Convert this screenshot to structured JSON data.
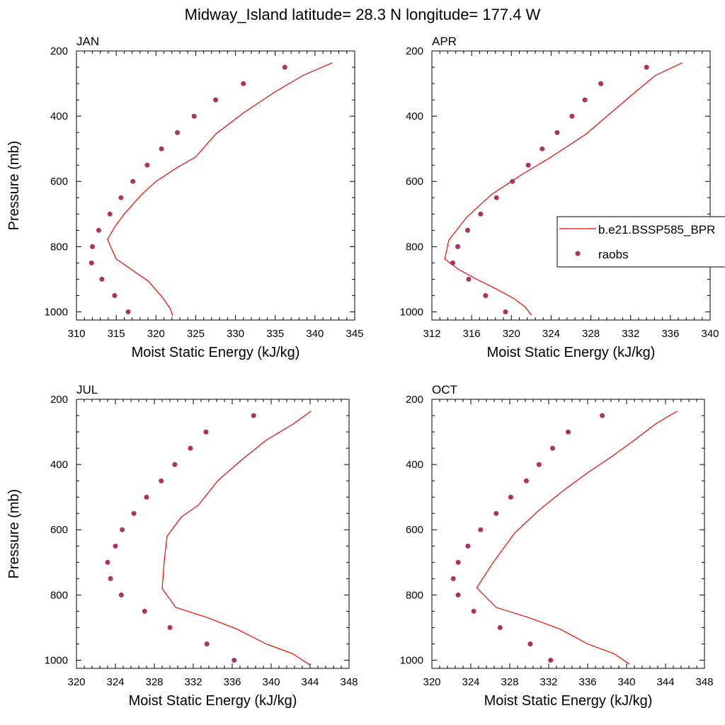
{
  "figure": {
    "title": "Midway_Island  latitude= 28.3 N longitude= 177.4 W"
  },
  "legend": {
    "placement": "right of APR panel (clipped at right edge)",
    "model_label": "b.e21.BSSP585_BPR",
    "obs_label": "raobs"
  },
  "colors": {
    "model_line": "#ff0000",
    "obs_marker": "#b03060",
    "axis": "#000000"
  },
  "chart_data": [
    {
      "type": "line",
      "panel": "JAN",
      "title": "JAN",
      "xlabel": "Moist Static Energy (kJ/kg)",
      "ylabel": "Pressure (mb)",
      "xlim": [
        310,
        345
      ],
      "ylim": [
        1025,
        200
      ],
      "y_inverted": true,
      "xticks": [
        310,
        315,
        320,
        325,
        330,
        335,
        340,
        345
      ],
      "yticks": [
        200,
        400,
        600,
        800,
        1000
      ],
      "series": [
        {
          "name": "b.e21.BSSP585_BPR",
          "kind": "line",
          "x": [
            342.2,
            338.5,
            335.0,
            331.0,
            327.5,
            325.0,
            322.5,
            320.0,
            318.2,
            316.0,
            314.8,
            313.9,
            315.0,
            317.5,
            319.0,
            320.8,
            321.8,
            322.1
          ],
          "y": [
            236,
            275,
            325,
            390,
            455,
            525,
            560,
            600,
            640,
            700,
            740,
            778,
            838,
            880,
            905,
            955,
            990,
            1013
          ]
        },
        {
          "name": "raobs",
          "kind": "scatter",
          "x": [
            336.2,
            331.0,
            327.5,
            324.8,
            322.7,
            320.7,
            318.9,
            317.1,
            315.6,
            314.2,
            312.8,
            312.0,
            311.9,
            313.2,
            314.8,
            316.5
          ],
          "y": [
            250,
            300,
            350,
            400,
            450,
            500,
            550,
            600,
            650,
            700,
            750,
            800,
            850,
            900,
            950,
            1000
          ]
        }
      ]
    },
    {
      "type": "line",
      "panel": "APR",
      "title": "APR",
      "xlabel": "Moist Static Energy (kJ/kg)",
      "ylabel": "",
      "xlim": [
        312,
        340
      ],
      "ylim": [
        1025,
        200
      ],
      "y_inverted": true,
      "xticks": [
        312,
        316,
        320,
        324,
        328,
        332,
        336,
        340
      ],
      "yticks": [
        200,
        400,
        600,
        800,
        1000
      ],
      "series": [
        {
          "name": "b.e21.BSSP585_BPR",
          "kind": "line",
          "x": [
            337.2,
            334.5,
            332.5,
            330.0,
            327.5,
            324.0,
            321.0,
            318.0,
            315.5,
            313.7,
            313.3,
            314.7,
            316.5,
            318.5,
            320.3,
            321.4,
            322.0
          ],
          "y": [
            236,
            275,
            325,
            390,
            455,
            525,
            580,
            640,
            710,
            780,
            838,
            870,
            900,
            930,
            960,
            985,
            1010
          ]
        },
        {
          "name": "raobs",
          "kind": "scatter",
          "x": [
            333.6,
            329.0,
            327.4,
            326.1,
            324.6,
            323.1,
            321.7,
            320.1,
            318.5,
            316.9,
            315.6,
            314.6,
            314.1,
            315.7,
            317.4,
            319.4
          ],
          "y": [
            250,
            300,
            350,
            400,
            450,
            500,
            550,
            600,
            650,
            700,
            750,
            800,
            850,
            900,
            950,
            1000
          ]
        }
      ]
    },
    {
      "type": "line",
      "panel": "JUL",
      "title": "JUL",
      "xlabel": "Moist Static Energy (kJ/kg)",
      "ylabel": "Pressure (mb)",
      "xlim": [
        320,
        348
      ],
      "ylim": [
        1025,
        200
      ],
      "y_inverted": true,
      "xticks": [
        320,
        324,
        328,
        332,
        336,
        340,
        344,
        348
      ],
      "yticks": [
        200,
        400,
        600,
        800,
        1000
      ],
      "series": [
        {
          "name": "b.e21.BSSP585_BPR",
          "kind": "line",
          "x": [
            344.1,
            342.3,
            339.5,
            336.8,
            334.5,
            332.5,
            330.8,
            329.3,
            329.0,
            328.8,
            330.2,
            333.5,
            336.5,
            339.5,
            342.2,
            344.0
          ],
          "y": [
            236,
            275,
            325,
            390,
            450,
            525,
            560,
            620,
            700,
            780,
            838,
            870,
            905,
            950,
            980,
            1015
          ]
        },
        {
          "name": "raobs",
          "kind": "scatter",
          "x": [
            338.2,
            333.3,
            331.7,
            330.1,
            328.7,
            327.2,
            325.9,
            324.7,
            324.0,
            323.2,
            323.5,
            324.6,
            327.0,
            329.6,
            333.4,
            336.2
          ],
          "y": [
            250,
            300,
            350,
            400,
            450,
            500,
            550,
            600,
            650,
            700,
            750,
            800,
            850,
            900,
            950,
            1000
          ]
        }
      ]
    },
    {
      "type": "line",
      "panel": "OCT",
      "title": "OCT",
      "xlabel": "Moist Static Energy (kJ/kg)",
      "ylabel": "",
      "xlim": [
        320,
        348
      ],
      "ylim": [
        1025,
        200
      ],
      "y_inverted": true,
      "xticks": [
        320,
        324,
        328,
        332,
        336,
        340,
        344,
        348
      ],
      "yticks": [
        200,
        400,
        600,
        800,
        1000
      ],
      "series": [
        {
          "name": "b.e21.BSSP585_BPR",
          "kind": "line",
          "x": [
            345.2,
            343.0,
            340.8,
            338.5,
            336.0,
            333.5,
            331.0,
            328.5,
            326.3,
            324.6,
            326.6,
            330.0,
            333.2,
            336.0,
            338.7,
            340.3
          ],
          "y": [
            236,
            275,
            325,
            375,
            425,
            480,
            540,
            610,
            700,
            778,
            838,
            870,
            905,
            950,
            980,
            1012
          ]
        },
        {
          "name": "raobs",
          "kind": "scatter",
          "x": [
            337.5,
            334.0,
            332.4,
            331.0,
            329.7,
            328.1,
            326.6,
            325.0,
            323.7,
            322.7,
            322.2,
            322.7,
            324.3,
            327.0,
            330.1,
            332.2
          ],
          "y": [
            250,
            300,
            350,
            400,
            450,
            500,
            550,
            600,
            650,
            700,
            750,
            800,
            850,
            900,
            950,
            1000
          ]
        }
      ]
    }
  ]
}
